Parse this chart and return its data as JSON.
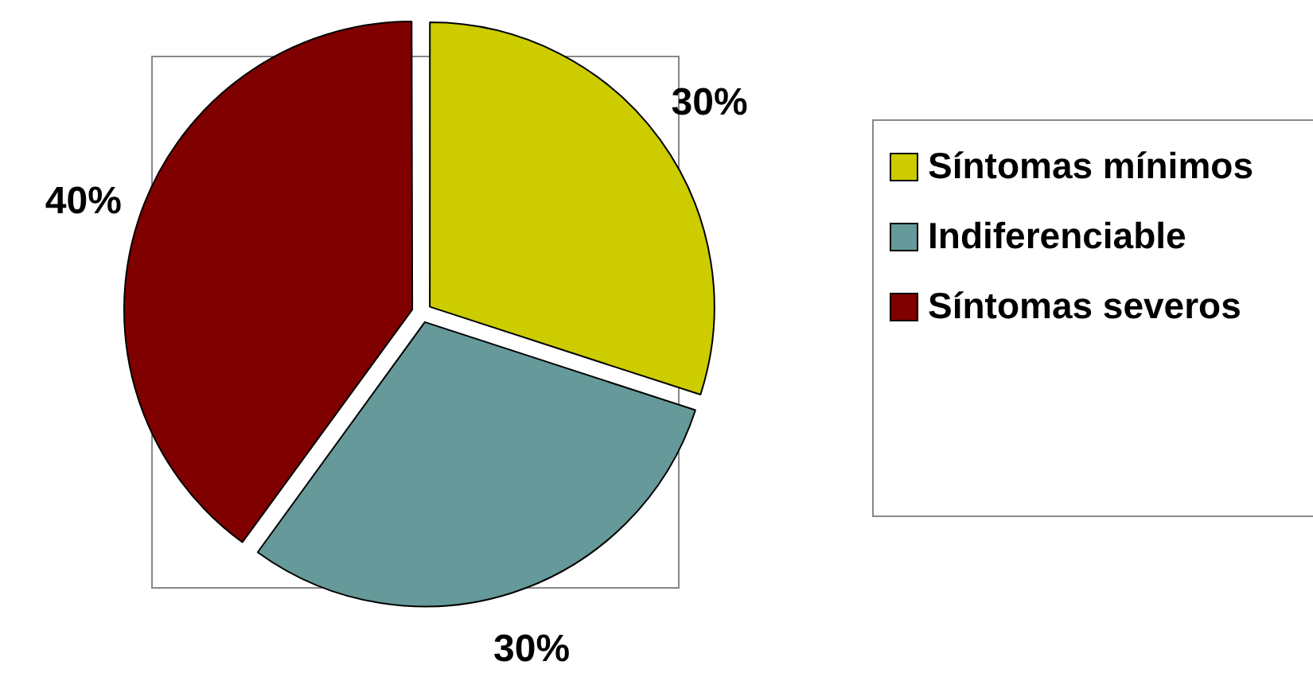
{
  "chart_data": {
    "type": "pie",
    "categories": [
      "Síntomas mínimos",
      "Indiferenciable",
      "Síntomas severos"
    ],
    "values": [
      30,
      30,
      40
    ],
    "value_labels": [
      "30%",
      "30%",
      "40%"
    ],
    "colors": [
      "#cccc00",
      "#669999",
      "#800000"
    ],
    "legend": "right"
  }
}
